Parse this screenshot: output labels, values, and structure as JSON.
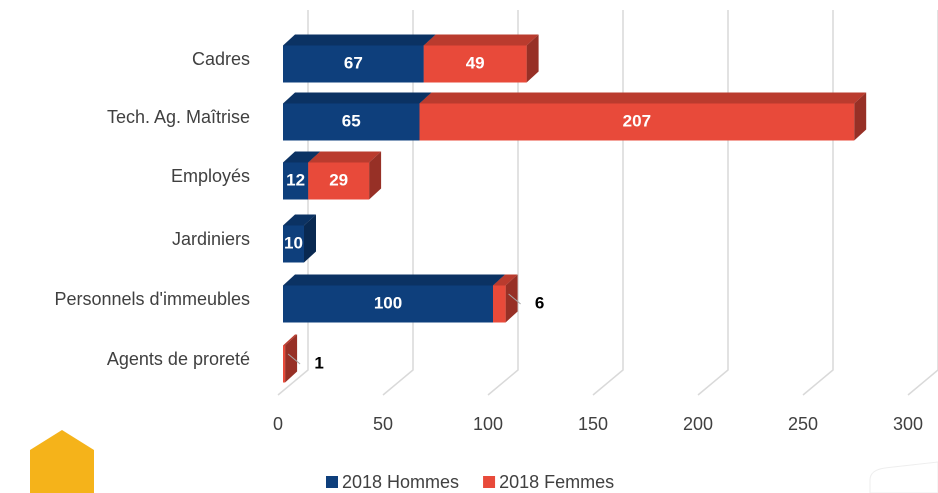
{
  "chart_data": {
    "type": "bar3d-stacked-horizontal",
    "categories": [
      "Cadres",
      "Tech. Ag. Maîtrise",
      "Employés",
      "Jardiniers",
      "Personnels d'immeubles",
      "Agents de proreté"
    ],
    "series": [
      {
        "name": "2018 Hommes",
        "color": "#0e3f7c",
        "values": [
          67,
          65,
          12,
          10,
          100,
          null
        ]
      },
      {
        "name": "2018 Femmes",
        "color": "#e84a3a",
        "values": [
          49,
          207,
          29,
          null,
          6,
          1
        ]
      }
    ],
    "xlim": [
      0,
      300
    ],
    "xticks": [
      0,
      50,
      100,
      150,
      200,
      250,
      300
    ],
    "grid": true
  }
}
